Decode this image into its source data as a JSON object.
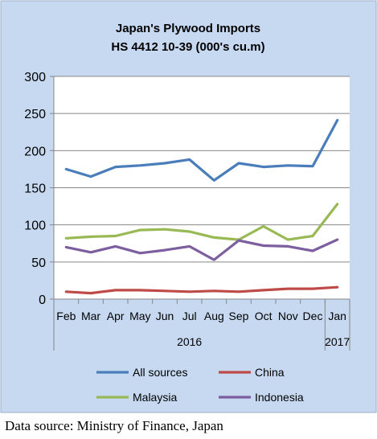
{
  "chart_data": {
    "type": "line",
    "title": "Japan's Plywood Imports",
    "subtitle": "HS 4412 10-39  (000's cu.m)",
    "categories": [
      "Feb",
      "Mar",
      "Apr",
      "May",
      "Jun",
      "Jul",
      "Aug",
      "Sep",
      "Oct",
      "Nov",
      "Dec",
      "Jan"
    ],
    "year_groups": [
      {
        "label": "2016",
        "from": 0,
        "to": 10
      },
      {
        "label": "2017",
        "from": 11,
        "to": 11
      }
    ],
    "ylim": [
      0,
      300
    ],
    "yticks": [
      0,
      50,
      100,
      150,
      200,
      250,
      300
    ],
    "grid": true,
    "legend_position": "bottom",
    "series": [
      {
        "name": "All sources",
        "color": "#4a7ebb",
        "values": [
          175,
          165,
          178,
          180,
          183,
          188,
          160,
          183,
          178,
          180,
          179,
          241
        ]
      },
      {
        "name": "China",
        "color": "#be4b48",
        "values": [
          10,
          8,
          12,
          12,
          11,
          10,
          11,
          10,
          12,
          14,
          14,
          16
        ]
      },
      {
        "name": "Malaysia",
        "color": "#98b954",
        "values": [
          82,
          84,
          85,
          93,
          94,
          91,
          83,
          80,
          98,
          80,
          85,
          128
        ]
      },
      {
        "name": "Indonesia",
        "color": "#7d5fa0",
        "values": [
          70,
          63,
          71,
          62,
          66,
          71,
          53,
          79,
          72,
          71,
          65,
          80
        ]
      }
    ]
  },
  "source_note": "Data source: Ministry of Finance, Japan"
}
